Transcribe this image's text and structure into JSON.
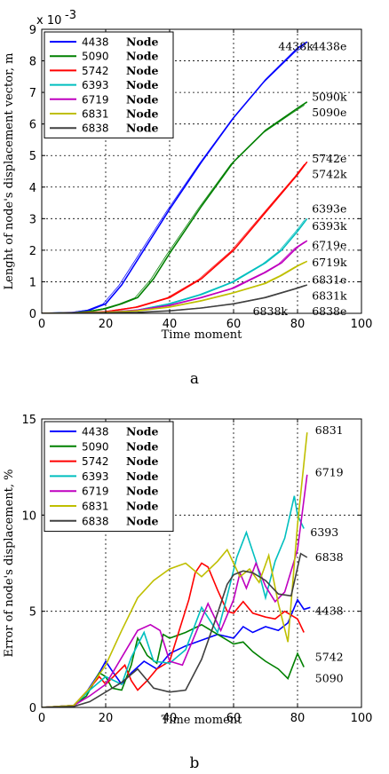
{
  "chart_data": [
    {
      "type": "line",
      "panel_label": "a",
      "exponent_label": "x 10",
      "exponent_power": "-3",
      "xlabel": "Time moment",
      "ylabel": "Lenght of node's displacement vector, m",
      "xlim": [
        0,
        100
      ],
      "ylim": [
        0,
        9
      ],
      "xticks": [
        "0",
        "20",
        "40",
        "60",
        "80",
        "100"
      ],
      "yticks": [
        "0",
        "1",
        "2",
        "3",
        "4",
        "5",
        "6",
        "7",
        "8",
        "9"
      ],
      "grid": true,
      "legend_position": "top-left",
      "legend_suffix": "Node",
      "series": [
        {
          "name": "4438",
          "color": "#0000ff",
          "x": [
            0,
            10,
            15,
            20,
            25,
            30,
            40,
            50,
            60,
            70,
            80,
            83
          ],
          "y": [
            0,
            0.03,
            0.1,
            0.3,
            0.9,
            1.7,
            3.3,
            4.8,
            6.2,
            7.4,
            8.4,
            8.6
          ]
        },
        {
          "name": "5090",
          "color": "#008000",
          "x": [
            0,
            10,
            15,
            20,
            25,
            30,
            35,
            40,
            50,
            60,
            70,
            80,
            83
          ],
          "y": [
            0,
            0.02,
            0.06,
            0.15,
            0.3,
            0.5,
            1.1,
            1.9,
            3.4,
            4.8,
            5.8,
            6.5,
            6.7
          ]
        },
        {
          "name": "5742",
          "color": "#ff0000",
          "x": [
            0,
            10,
            20,
            30,
            40,
            50,
            60,
            70,
            80,
            83
          ],
          "y": [
            0,
            0.01,
            0.05,
            0.2,
            0.5,
            1.1,
            2.0,
            3.2,
            4.4,
            4.8
          ]
        },
        {
          "name": "6393",
          "color": "#00bfbf",
          "x": [
            0,
            10,
            20,
            30,
            40,
            50,
            60,
            70,
            75,
            80,
            83
          ],
          "y": [
            0,
            0.01,
            0.03,
            0.1,
            0.3,
            0.6,
            1.0,
            1.6,
            2.0,
            2.6,
            3.0
          ]
        },
        {
          "name": "6719",
          "color": "#bf00bf",
          "x": [
            0,
            10,
            20,
            30,
            40,
            50,
            60,
            70,
            75,
            80,
            83
          ],
          "y": [
            0,
            0.01,
            0.03,
            0.1,
            0.25,
            0.5,
            0.8,
            1.3,
            1.6,
            2.1,
            2.3
          ]
        },
        {
          "name": "6831",
          "color": "#bfbf00",
          "x": [
            0,
            10,
            20,
            30,
            40,
            50,
            60,
            70,
            75,
            80,
            83
          ],
          "y": [
            0,
            0.01,
            0.03,
            0.08,
            0.2,
            0.4,
            0.65,
            0.95,
            1.2,
            1.5,
            1.65
          ]
        },
        {
          "name": "6838",
          "color": "#404040",
          "x": [
            0,
            10,
            20,
            30,
            40,
            50,
            60,
            70,
            80,
            83
          ],
          "y": [
            0,
            0.005,
            0.01,
            0.03,
            0.08,
            0.17,
            0.3,
            0.5,
            0.8,
            0.9
          ]
        }
      ],
      "end_labels": [
        {
          "text": "4438k",
          "x": 74,
          "y": 8.45
        },
        {
          "text": "4438e",
          "x": 84.5,
          "y": 8.45
        },
        {
          "text": "5090k",
          "x": 84.5,
          "y": 6.85
        },
        {
          "text": "5090e",
          "x": 84.5,
          "y": 6.35
        },
        {
          "text": "5742e",
          "x": 84.5,
          "y": 4.9
        },
        {
          "text": "5742k",
          "x": 84.5,
          "y": 4.4
        },
        {
          "text": "6393e",
          "x": 84.5,
          "y": 3.3
        },
        {
          "text": "6393k",
          "x": 84.5,
          "y": 2.75
        },
        {
          "text": "6719e",
          "x": 84.5,
          "y": 2.15
        },
        {
          "text": "6719k",
          "x": 84.5,
          "y": 1.6
        },
        {
          "text": "6831e",
          "x": 84.5,
          "y": 1.05
        },
        {
          "text": "6831k",
          "x": 84.5,
          "y": 0.55
        },
        {
          "text": "6838k",
          "x": 66,
          "y": 0.05
        },
        {
          "text": "6838e",
          "x": 84.5,
          "y": 0.05
        }
      ]
    },
    {
      "type": "line",
      "panel_label": "b",
      "xlabel": "Time moment",
      "ylabel": "Error of node's displacement, %",
      "xlim": [
        0,
        100
      ],
      "ylim": [
        0,
        15
      ],
      "xticks": [
        "0",
        "20",
        "40",
        "60",
        "80",
        "100"
      ],
      "yticks": [
        "0",
        "5",
        "10",
        "15"
      ],
      "grid": true,
      "legend_position": "top-left",
      "legend_suffix": "Node",
      "series": [
        {
          "name": "4438",
          "color": "#0000ff",
          "x": [
            0,
            10,
            14,
            18,
            20,
            22,
            25,
            28,
            32,
            36,
            40,
            45,
            50,
            55,
            60,
            63,
            66,
            70,
            74,
            77,
            80,
            82,
            84
          ],
          "y": [
            0,
            0.1,
            0.8,
            1.8,
            2.4,
            1.9,
            1.2,
            1.8,
            2.4,
            2.0,
            2.8,
            3.2,
            3.5,
            3.8,
            3.6,
            4.2,
            3.9,
            4.2,
            4.0,
            4.4,
            5.6,
            5.1,
            5.2
          ]
        },
        {
          "name": "5090",
          "color": "#008000",
          "x": [
            0,
            10,
            14,
            18,
            20,
            22,
            25,
            28,
            30,
            33,
            36,
            38,
            40,
            45,
            50,
            55,
            60,
            63,
            66,
            70,
            74,
            77,
            80,
            82
          ],
          "y": [
            0,
            0.1,
            0.6,
            1.8,
            1.6,
            1.0,
            0.9,
            2.2,
            3.6,
            2.7,
            2.3,
            3.8,
            3.6,
            3.9,
            4.3,
            3.8,
            3.3,
            3.4,
            2.9,
            2.4,
            2.0,
            1.5,
            2.8,
            2.1
          ]
        },
        {
          "name": "5742",
          "color": "#ff0000",
          "x": [
            0,
            10,
            15,
            18,
            20,
            23,
            26,
            28,
            30,
            33,
            36,
            40,
            43,
            46,
            48,
            50,
            52,
            55,
            58,
            60,
            63,
            66,
            70,
            73,
            76,
            80,
            82
          ],
          "y": [
            0,
            0.1,
            1.0,
            1.6,
            1.2,
            1.7,
            2.2,
            1.4,
            0.9,
            1.4,
            2.0,
            2.4,
            4.0,
            5.6,
            7.0,
            7.5,
            7.3,
            6.1,
            5.0,
            4.9,
            5.5,
            4.9,
            4.7,
            4.6,
            5.0,
            4.6,
            3.9
          ]
        },
        {
          "name": "6393",
          "color": "#00bfbf",
          "x": [
            0,
            10,
            15,
            20,
            25,
            28,
            32,
            35,
            40,
            45,
            50,
            55,
            58,
            61,
            64,
            67,
            70,
            73,
            76,
            79,
            80,
            82
          ],
          "y": [
            0,
            0.1,
            0.9,
            1.6,
            1.2,
            2.6,
            3.9,
            2.4,
            2.3,
            3.0,
            5.2,
            3.9,
            5.8,
            7.8,
            9.1,
            7.6,
            5.7,
            7.6,
            8.8,
            11.0,
            10.0,
            9.3
          ]
        },
        {
          "name": "6719",
          "color": "#bf00bf",
          "x": [
            0,
            10,
            15,
            20,
            25,
            30,
            34,
            37,
            40,
            44,
            48,
            52,
            56,
            60,
            62,
            64,
            67,
            70,
            73,
            76,
            80,
            83
          ],
          "y": [
            0,
            0.1,
            0.6,
            1.2,
            2.6,
            4.0,
            4.3,
            4.0,
            2.4,
            2.2,
            3.8,
            5.4,
            4.0,
            5.6,
            7.0,
            6.2,
            7.5,
            6.3,
            5.5,
            6.0,
            8.2,
            12.1
          ]
        },
        {
          "name": "6831",
          "color": "#bfbf00",
          "x": [
            0,
            10,
            15,
            20,
            25,
            30,
            35,
            40,
            45,
            50,
            55,
            58,
            62,
            65,
            68,
            71,
            74,
            77,
            80,
            83
          ],
          "y": [
            0,
            0.1,
            1.0,
            2.2,
            4.0,
            5.7,
            6.6,
            7.2,
            7.5,
            6.8,
            7.6,
            8.2,
            6.8,
            7.2,
            6.5,
            7.9,
            5.4,
            3.4,
            9.5,
            14.3
          ]
        },
        {
          "name": "6838",
          "color": "#404040",
          "x": [
            0,
            10,
            15,
            20,
            25,
            30,
            35,
            40,
            45,
            50,
            54,
            58,
            60,
            63,
            66,
            70,
            74,
            78,
            81,
            83
          ],
          "y": [
            0,
            0.05,
            0.3,
            0.8,
            1.3,
            2.0,
            1.0,
            0.8,
            0.9,
            2.5,
            4.4,
            6.4,
            6.9,
            7.1,
            7.0,
            6.6,
            5.9,
            5.8,
            8.0,
            7.8
          ]
        }
      ],
      "end_labels": [
        {
          "text": "6831",
          "x": 85.5,
          "y": 14.4
        },
        {
          "text": "6719",
          "x": 85.5,
          "y": 12.2
        },
        {
          "text": "6393",
          "x": 84,
          "y": 9.1
        },
        {
          "text": "6838",
          "x": 85.5,
          "y": 7.8
        },
        {
          "text": "4438",
          "x": 85.5,
          "y": 5.0
        },
        {
          "text": "5742",
          "x": 85.5,
          "y": 2.6
        },
        {
          "text": "5090",
          "x": 85.5,
          "y": 1.5
        }
      ]
    }
  ]
}
